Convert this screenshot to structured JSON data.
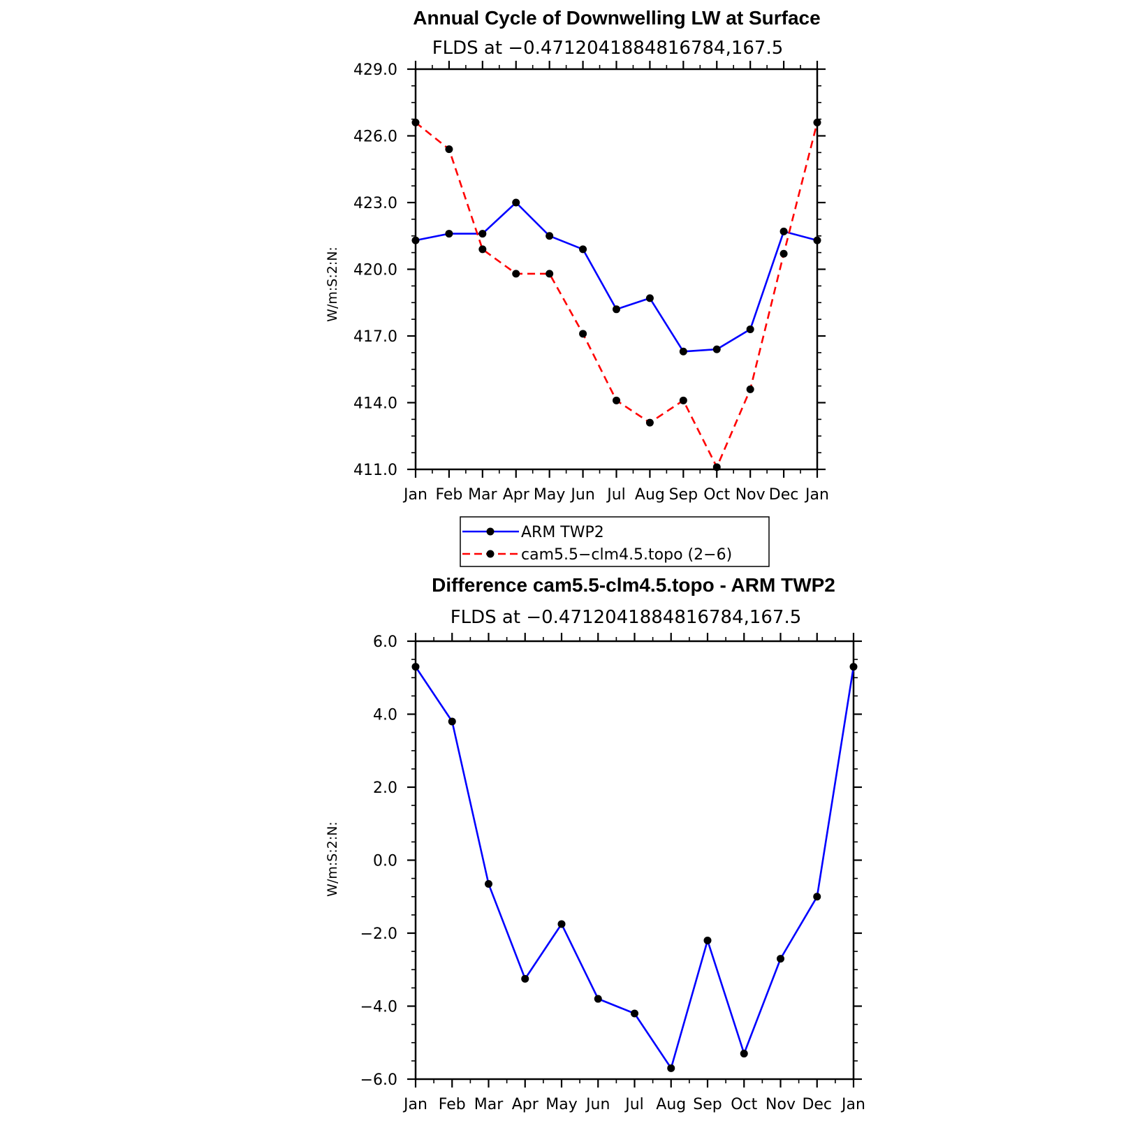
{
  "chart_data": [
    {
      "type": "line",
      "title": "Annual Cycle of Downwelling LW at Surface",
      "subtitle": "FLDS at −0.4712041884816784,167.5",
      "xlabel": "",
      "ylabel": "W/m:S:2:N:",
      "categories": [
        "Jan",
        "Feb",
        "Mar",
        "Apr",
        "May",
        "Jun",
        "Jul",
        "Aug",
        "Sep",
        "Oct",
        "Nov",
        "Dec",
        "Jan"
      ],
      "ylim": [
        411.0,
        429.0
      ],
      "yticks": [
        411.0,
        414.0,
        417.0,
        420.0,
        423.0,
        426.0,
        429.0
      ],
      "ytick_labels": [
        "411.0",
        "414.0",
        "417.0",
        "420.0",
        "423.0",
        "426.0",
        "429.0"
      ],
      "grid": false,
      "legend": "below-plot",
      "series": [
        {
          "name": "ARM TWP2",
          "color": "#0000ff",
          "style": "solid",
          "values": [
            421.3,
            421.6,
            421.6,
            423.0,
            421.5,
            420.9,
            418.2,
            418.7,
            416.3,
            416.4,
            417.3,
            421.7,
            421.3
          ]
        },
        {
          "name": "cam5.5−clm4.5.topo (2−6)",
          "color": "#ff0000",
          "style": "dashed",
          "values": [
            426.6,
            425.4,
            420.9,
            419.8,
            419.8,
            417.1,
            414.1,
            413.1,
            414.1,
            411.1,
            414.6,
            420.7,
            426.6
          ]
        }
      ]
    },
    {
      "type": "line",
      "title": "Difference cam5.5-clm4.5.topo - ARM TWP2",
      "subtitle": "FLDS at −0.4712041884816784,167.5",
      "xlabel": "",
      "ylabel": "W/m:S:2:N:",
      "categories": [
        "Jan",
        "Feb",
        "Mar",
        "Apr",
        "May",
        "Jun",
        "Jul",
        "Aug",
        "Sep",
        "Oct",
        "Nov",
        "Dec",
        "Jan"
      ],
      "ylim": [
        -6.0,
        6.0
      ],
      "yticks": [
        -6.0,
        -4.0,
        -2.0,
        0.0,
        2.0,
        4.0,
        6.0
      ],
      "ytick_labels": [
        "−6.0",
        "−4.0",
        "−2.0",
        "0.0",
        "2.0",
        "4.0",
        "6.0"
      ],
      "grid": false,
      "series": [
        {
          "color": "#0000ff",
          "style": "solid",
          "values": [
            5.3,
            3.8,
            -0.65,
            -3.25,
            -1.75,
            -3.8,
            -4.2,
            -5.7,
            -2.2,
            -5.3,
            -2.7,
            -1.0,
            5.3
          ]
        }
      ]
    }
  ]
}
